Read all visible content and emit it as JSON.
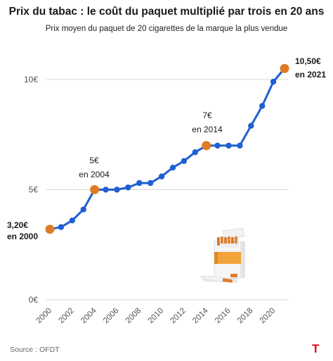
{
  "header": {
    "title": "Prix du tabac : le coût du paquet multiplié par trois en 20 ans",
    "subtitle": "Prix moyen du paquet de 20 cigarettes de la marque la plus vendue"
  },
  "footer": {
    "source": "Source : OFDT",
    "logo_text": "T"
  },
  "colors": {
    "line": "#1f5fd1",
    "highlight": "#e07b24",
    "grid": "#d9d9d9",
    "logo": "#e2001a"
  },
  "illustration": {
    "icon": "cigarette-pack-icon"
  },
  "chart_data": {
    "type": "line",
    "title": "Prix du tabac : le coût du paquet multiplié par trois en 20 ans",
    "subtitle": "Prix moyen du paquet de 20 cigarettes de la marque la plus vendue",
    "xlabel": "",
    "ylabel": "",
    "ylim": [
      0,
      11
    ],
    "grid": true,
    "x_ticks": [
      2000,
      2002,
      2004,
      2006,
      2008,
      2010,
      2012,
      2014,
      2016,
      2018,
      2020
    ],
    "y_ticks": [
      0,
      5,
      10
    ],
    "y_tick_labels": [
      "0€",
      "5€",
      "10€"
    ],
    "series": [
      {
        "x": [
          2000,
          2001,
          2002,
          2003,
          2004,
          2005,
          2006,
          2007,
          2008,
          2009,
          2010,
          2011,
          2012,
          2013,
          2014,
          2015,
          2016,
          2017,
          2018,
          2019,
          2020,
          2021
        ],
        "values": [
          3.2,
          3.3,
          3.6,
          4.1,
          5.0,
          5.0,
          5.0,
          5.1,
          5.3,
          5.3,
          5.6,
          6.0,
          6.3,
          6.7,
          7.0,
          7.0,
          7.0,
          7.0,
          7.9,
          8.8,
          9.9,
          10.5
        ]
      }
    ],
    "highlights": [
      {
        "x": 2000,
        "value": 3.2,
        "label_value": "3,20€",
        "label_year": "en 2000"
      },
      {
        "x": 2004,
        "value": 5.0,
        "label_value": "5€",
        "label_year": "en 2004"
      },
      {
        "x": 2014,
        "value": 7.0,
        "label_value": "7€",
        "label_year": "en 2014"
      },
      {
        "x": 2021,
        "value": 10.5,
        "label_value": "10,50€",
        "label_year": "en 2021"
      }
    ]
  }
}
